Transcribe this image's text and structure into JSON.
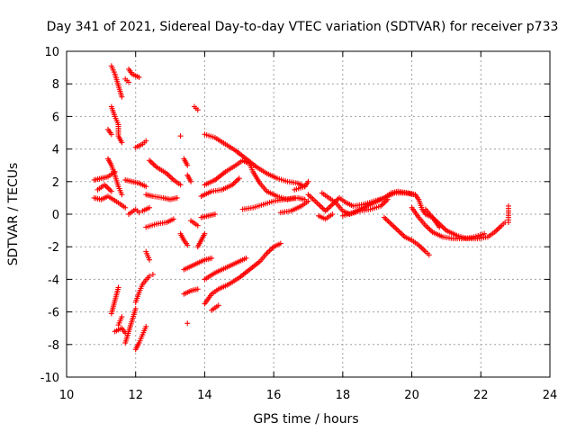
{
  "chart_data": {
    "type": "scatter",
    "title": "Day 341 of 2021, Sidereal Day-to-day VTEC variation (SDTVAR) for receiver p733",
    "xlabel": "GPS time / hours",
    "ylabel": "SDTVAR / TECUs",
    "xlim": [
      10,
      24
    ],
    "ylim": [
      -10,
      10
    ],
    "x_ticks": [
      "10",
      "12",
      "14",
      "16",
      "18",
      "20",
      "22",
      "24"
    ],
    "y_ticks": [
      "10",
      "8",
      "6",
      "4",
      "2",
      "0",
      "-2",
      "-4",
      "-6",
      "-8",
      "-10"
    ],
    "grid": true,
    "marker": "plus",
    "color": "#ff0000",
    "series_paths": [
      [
        [
          10.8,
          2.1
        ],
        [
          11.0,
          2.2
        ],
        [
          11.2,
          2.3
        ],
        [
          11.4,
          2.6
        ]
      ],
      [
        [
          10.8,
          1.0
        ],
        [
          11.0,
          0.9
        ],
        [
          11.2,
          1.1
        ],
        [
          11.5,
          0.7
        ],
        [
          11.7,
          0.4
        ]
      ],
      [
        [
          10.9,
          1.5
        ],
        [
          11.1,
          1.8
        ],
        [
          11.3,
          1.4
        ]
      ],
      [
        [
          11.3,
          9.1
        ],
        [
          11.4,
          8.6
        ],
        [
          11.5,
          7.9
        ],
        [
          11.6,
          7.2
        ]
      ],
      [
        [
          11.8,
          8.9
        ],
        [
          11.9,
          8.6
        ],
        [
          12.1,
          8.4
        ]
      ],
      [
        [
          11.7,
          8.3
        ],
        [
          11.8,
          8.1
        ]
      ],
      [
        [
          11.3,
          6.6
        ],
        [
          11.4,
          6.0
        ],
        [
          11.5,
          5.5
        ],
        [
          11.5,
          4.8
        ],
        [
          11.6,
          4.4
        ]
      ],
      [
        [
          11.2,
          5.2
        ],
        [
          11.3,
          4.9
        ]
      ],
      [
        [
          11.2,
          3.4
        ],
        [
          11.3,
          3.0
        ],
        [
          11.4,
          2.4
        ],
        [
          11.5,
          1.7
        ],
        [
          11.6,
          1.2
        ]
      ],
      [
        [
          11.7,
          2.1
        ],
        [
          11.9,
          2.0
        ],
        [
          12.1,
          1.9
        ],
        [
          12.3,
          1.7
        ]
      ],
      [
        [
          11.8,
          0.0
        ],
        [
          12.0,
          0.3
        ],
        [
          12.1,
          0.1
        ]
      ],
      [
        [
          12.0,
          4.1
        ],
        [
          12.2,
          4.3
        ],
        [
          12.3,
          4.5
        ]
      ],
      [
        [
          12.4,
          3.3
        ],
        [
          12.6,
          2.9
        ],
        [
          12.9,
          2.5
        ],
        [
          13.1,
          2.1
        ],
        [
          13.3,
          1.8
        ]
      ],
      [
        [
          12.3,
          1.2
        ],
        [
          12.5,
          1.1
        ],
        [
          12.8,
          1.0
        ],
        [
          13.0,
          0.9
        ],
        [
          13.2,
          1.0
        ]
      ],
      [
        [
          12.3,
          -0.8
        ],
        [
          12.6,
          -0.6
        ],
        [
          12.9,
          -0.5
        ],
        [
          13.1,
          -0.3
        ]
      ],
      [
        [
          12.2,
          0.2
        ],
        [
          12.4,
          0.4
        ]
      ],
      [
        [
          12.3,
          -2.3
        ],
        [
          12.4,
          -2.8
        ]
      ],
      [
        [
          12.5,
          -3.7
        ]
      ],
      [
        [
          11.3,
          -6.1
        ],
        [
          11.4,
          -5.3
        ],
        [
          11.5,
          -4.5
        ]
      ],
      [
        [
          11.4,
          -7.2
        ],
        [
          11.6,
          -7.0
        ],
        [
          11.7,
          -7.3
        ]
      ],
      [
        [
          11.7,
          -7.9
        ],
        [
          11.8,
          -7.2
        ],
        [
          11.9,
          -6.5
        ],
        [
          12.0,
          -5.8
        ]
      ],
      [
        [
          12.0,
          -8.3
        ],
        [
          12.1,
          -7.9
        ],
        [
          12.2,
          -7.4
        ],
        [
          12.3,
          -6.9
        ]
      ],
      [
        [
          12.0,
          -5.4
        ],
        [
          12.1,
          -4.8
        ],
        [
          12.2,
          -4.3
        ],
        [
          12.4,
          -3.8
        ]
      ],
      [
        [
          11.5,
          -6.8
        ],
        [
          11.6,
          -6.3
        ]
      ],
      [
        [
          13.3,
          4.8
        ]
      ],
      [
        [
          13.4,
          3.4
        ],
        [
          13.5,
          3.0
        ]
      ],
      [
        [
          13.5,
          2.4
        ],
        [
          13.6,
          2.0
        ]
      ],
      [
        [
          13.3,
          -1.2
        ],
        [
          13.4,
          -1.6
        ],
        [
          13.5,
          -1.9
        ]
      ],
      [
        [
          13.6,
          -0.4
        ],
        [
          13.8,
          -0.7
        ]
      ],
      [
        [
          13.4,
          -3.4
        ],
        [
          13.6,
          -3.2
        ],
        [
          13.8,
          -3.0
        ],
        [
          14.0,
          -2.8
        ],
        [
          14.2,
          -2.7
        ]
      ],
      [
        [
          13.8,
          -2.0
        ],
        [
          13.9,
          -1.6
        ],
        [
          14.0,
          -1.2
        ]
      ],
      [
        [
          13.4,
          -4.9
        ],
        [
          13.6,
          -4.7
        ],
        [
          13.8,
          -4.6
        ]
      ],
      [
        [
          13.5,
          -6.7
        ]
      ],
      [
        [
          13.7,
          6.6
        ],
        [
          13.8,
          6.4
        ]
      ],
      [
        [
          14.0,
          4.9
        ],
        [
          14.3,
          4.7
        ],
        [
          14.6,
          4.3
        ],
        [
          14.9,
          3.9
        ],
        [
          15.2,
          3.4
        ],
        [
          15.5,
          2.9
        ],
        [
          15.8,
          2.5
        ],
        [
          16.1,
          2.2
        ],
        [
          16.4,
          2.0
        ],
        [
          16.7,
          1.9
        ],
        [
          16.9,
          1.7
        ]
      ],
      [
        [
          14.0,
          1.8
        ],
        [
          14.3,
          2.1
        ],
        [
          14.6,
          2.6
        ],
        [
          14.9,
          3.0
        ],
        [
          15.1,
          3.3
        ],
        [
          15.3,
          3.1
        ],
        [
          15.4,
          2.6
        ],
        [
          15.6,
          1.9
        ],
        [
          15.8,
          1.4
        ],
        [
          16.1,
          1.1
        ],
        [
          16.4,
          0.9
        ],
        [
          16.7,
          1.0
        ],
        [
          16.9,
          0.9
        ]
      ],
      [
        [
          13.9,
          1.1
        ],
        [
          14.2,
          1.4
        ],
        [
          14.5,
          1.5
        ],
        [
          14.8,
          1.8
        ],
        [
          15.0,
          2.2
        ]
      ],
      [
        [
          13.9,
          -0.2
        ],
        [
          14.1,
          -0.1
        ],
        [
          14.3,
          0.0
        ]
      ],
      [
        [
          14.0,
          -5.5
        ],
        [
          14.2,
          -4.9
        ],
        [
          14.4,
          -4.6
        ],
        [
          14.7,
          -4.3
        ],
        [
          15.0,
          -3.9
        ],
        [
          15.3,
          -3.4
        ],
        [
          15.6,
          -2.9
        ],
        [
          15.8,
          -2.4
        ],
        [
          16.0,
          -2.0
        ],
        [
          16.2,
          -1.8
        ]
      ],
      [
        [
          14.0,
          -4.0
        ],
        [
          14.3,
          -3.6
        ],
        [
          14.6,
          -3.3
        ],
        [
          14.9,
          -3.0
        ],
        [
          15.2,
          -2.7
        ]
      ],
      [
        [
          14.2,
          -5.9
        ],
        [
          14.4,
          -5.6
        ]
      ],
      [
        [
          15.1,
          0.3
        ],
        [
          15.4,
          0.4
        ],
        [
          15.7,
          0.6
        ],
        [
          16.0,
          0.8
        ],
        [
          16.3,
          0.9
        ],
        [
          16.6,
          1.0
        ]
      ],
      [
        [
          16.2,
          0.1
        ],
        [
          16.5,
          0.2
        ],
        [
          16.8,
          0.5
        ],
        [
          17.0,
          0.8
        ]
      ],
      [
        [
          16.6,
          1.5
        ],
        [
          16.9,
          1.7
        ],
        [
          17.0,
          2.0
        ]
      ],
      [
        [
          17.0,
          1.2
        ],
        [
          17.3,
          0.6
        ],
        [
          17.5,
          0.2
        ],
        [
          17.7,
          0.6
        ],
        [
          17.9,
          1.0
        ],
        [
          18.1,
          0.7
        ],
        [
          18.3,
          0.5
        ],
        [
          18.6,
          0.6
        ],
        [
          18.9,
          0.8
        ],
        [
          19.2,
          1.0
        ],
        [
          19.4,
          1.3
        ],
        [
          19.6,
          1.4
        ],
        [
          19.9,
          1.3
        ],
        [
          20.1,
          1.2
        ]
      ],
      [
        [
          17.4,
          1.3
        ],
        [
          17.6,
          1.0
        ],
        [
          17.8,
          0.7
        ],
        [
          18.0,
          0.2
        ],
        [
          18.2,
          0.0
        ],
        [
          18.5,
          0.2
        ],
        [
          18.8,
          0.3
        ],
        [
          19.1,
          0.5
        ],
        [
          19.3,
          0.9
        ]
      ],
      [
        [
          17.3,
          -0.1
        ],
        [
          17.5,
          -0.3
        ],
        [
          17.7,
          0.0
        ]
      ],
      [
        [
          18.0,
          -0.1
        ],
        [
          18.3,
          0.1
        ],
        [
          18.6,
          0.4
        ],
        [
          18.9,
          0.7
        ],
        [
          19.2,
          1.0
        ],
        [
          19.5,
          1.3
        ],
        [
          19.8,
          1.3
        ],
        [
          20.1,
          1.2
        ],
        [
          20.2,
          0.9
        ],
        [
          20.3,
          0.3
        ],
        [
          20.4,
          0.0
        ],
        [
          20.6,
          -0.2
        ],
        [
          20.8,
          -0.6
        ],
        [
          21.0,
          -1.0
        ],
        [
          21.3,
          -1.3
        ],
        [
          21.6,
          -1.5
        ],
        [
          21.9,
          -1.5
        ],
        [
          22.2,
          -1.4
        ],
        [
          22.4,
          -1.1
        ],
        [
          22.6,
          -0.7
        ],
        [
          22.7,
          -0.5
        ]
      ],
      [
        [
          20.0,
          0.4
        ],
        [
          20.2,
          -0.2
        ],
        [
          20.4,
          -0.7
        ],
        [
          20.6,
          -1.1
        ],
        [
          20.9,
          -1.4
        ],
        [
          21.2,
          -1.5
        ],
        [
          21.5,
          -1.5
        ],
        [
          21.8,
          -1.4
        ],
        [
          22.1,
          -1.2
        ]
      ],
      [
        [
          19.2,
          -0.2
        ],
        [
          19.4,
          -0.6
        ],
        [
          19.6,
          -1.0
        ],
        [
          19.8,
          -1.4
        ],
        [
          20.0,
          -1.6
        ],
        [
          20.2,
          -1.9
        ],
        [
          20.4,
          -2.3
        ],
        [
          20.5,
          -2.5
        ]
      ],
      [
        [
          20.4,
          0.3
        ],
        [
          20.6,
          -0.2
        ],
        [
          20.8,
          -0.8
        ]
      ],
      [
        [
          22.8,
          0.5
        ],
        [
          22.8,
          0.2
        ],
        [
          22.8,
          -0.2
        ],
        [
          22.8,
          -0.5
        ]
      ]
    ]
  }
}
